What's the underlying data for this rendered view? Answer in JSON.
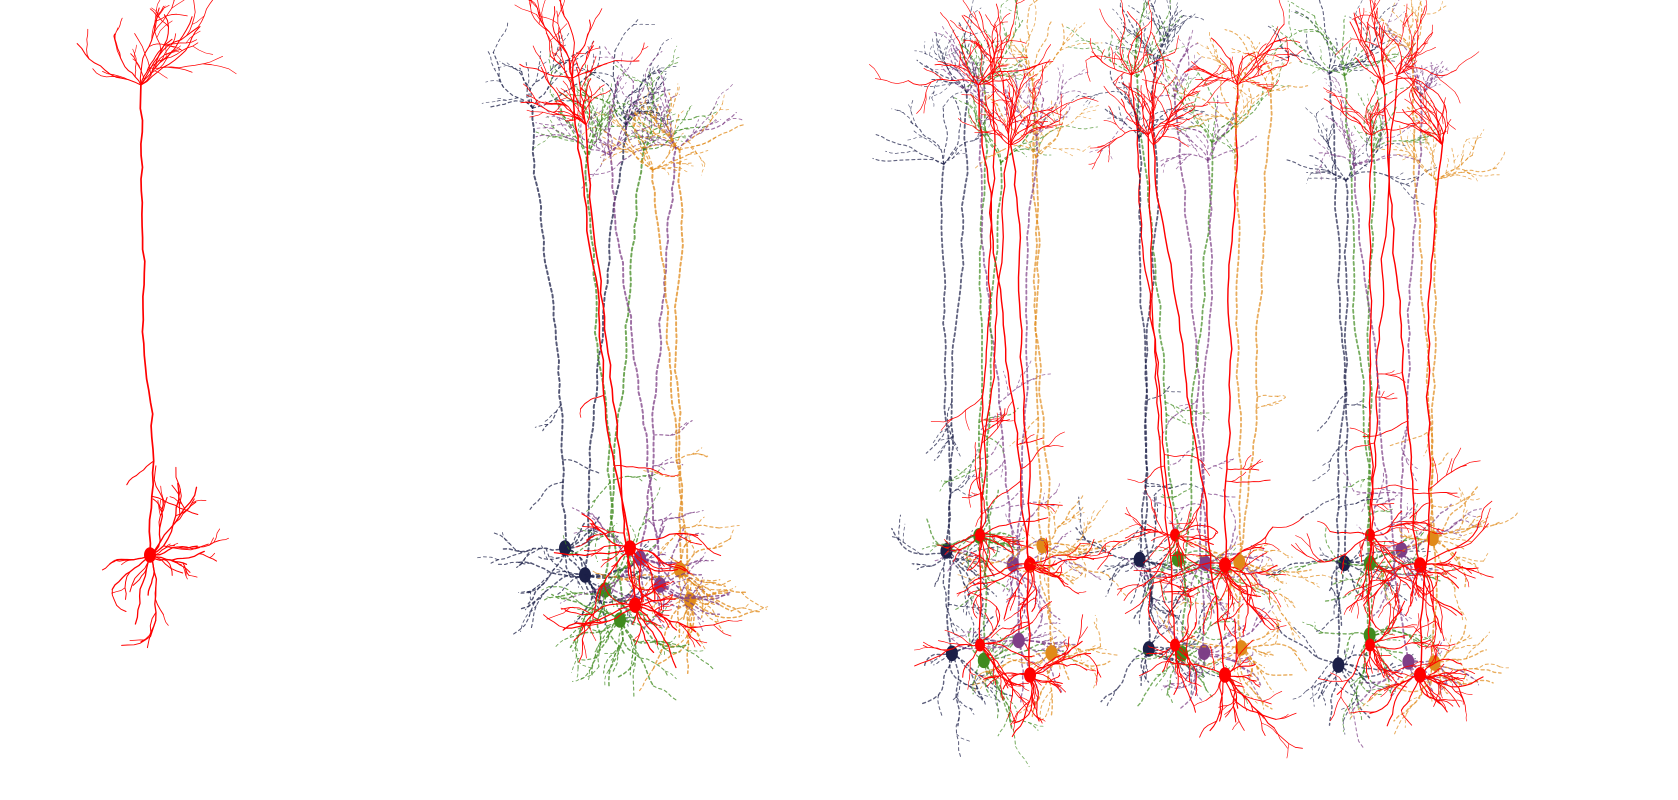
{
  "figure": {
    "panels": [
      {
        "name": "single-pyramidal-neuron",
        "neuron_count": 1
      },
      {
        "name": "small-neuron-cluster",
        "neuron_count": 9
      },
      {
        "name": "large-neuron-grid",
        "neuron_count": 36
      }
    ],
    "colors": {
      "red": "#ff0000",
      "navy": "#1c2048",
      "green": "#3f8a1e",
      "purple": "#7e3f86",
      "orange": "#e08a1a",
      "background": "#ffffff"
    }
  }
}
